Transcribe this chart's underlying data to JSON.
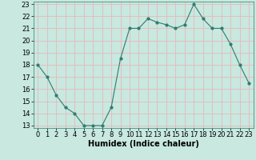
{
  "x": [
    0,
    1,
    2,
    3,
    4,
    5,
    6,
    7,
    8,
    9,
    10,
    11,
    12,
    13,
    14,
    15,
    16,
    17,
    18,
    19,
    20,
    21,
    22,
    23
  ],
  "y": [
    18,
    17,
    15.5,
    14.5,
    14,
    13,
    13,
    13,
    14.5,
    18.5,
    21,
    21,
    21.8,
    21.5,
    21.3,
    21,
    21.3,
    23,
    21.8,
    21,
    21,
    19.7,
    18,
    16.5
  ],
  "xlabel": "Humidex (Indice chaleur)",
  "line_color": "#2e7d6e",
  "marker_color": "#2e7d6e",
  "bg_color": "#c8e8e0",
  "grid_color": "#e8b8b8",
  "ylim_min": 13,
  "ylim_max": 23,
  "xlim_min": -0.5,
  "xlim_max": 23.5,
  "yticks": [
    13,
    14,
    15,
    16,
    17,
    18,
    19,
    20,
    21,
    22,
    23
  ],
  "xticks": [
    0,
    1,
    2,
    3,
    4,
    5,
    6,
    7,
    8,
    9,
    10,
    11,
    12,
    13,
    14,
    15,
    16,
    17,
    18,
    19,
    20,
    21,
    22,
    23
  ],
  "tick_fontsize": 6,
  "xlabel_fontsize": 7
}
